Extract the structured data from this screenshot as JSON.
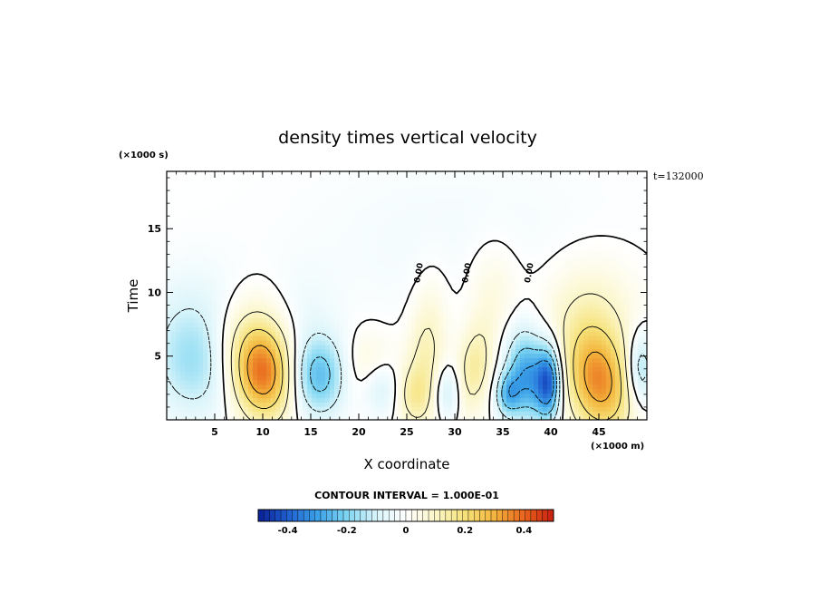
{
  "chart_data": {
    "type": "heatmap",
    "title": "density times vertical velocity",
    "xlabel": "X coordinate",
    "ylabel": "Time",
    "x_unit_label": "(×1000 m)",
    "y_unit_label": "(×1000 s)",
    "time_stamp": "t=132000",
    "xlim": [
      0,
      50
    ],
    "ylim": [
      0,
      19.5
    ],
    "x_ticks": [
      5,
      10,
      15,
      20,
      25,
      30,
      35,
      40,
      45
    ],
    "y_ticks": [
      5,
      10,
      15
    ],
    "contour_interval_text": "CONTOUR INTERVAL = 1.000E-01",
    "zero_contour_label": "0.00",
    "colorbar": {
      "range": [
        -0.5,
        0.5
      ],
      "ticks": [
        {
          "value": -0.4,
          "label": "-0.4"
        },
        {
          "value": -0.2,
          "label": "-0.2"
        },
        {
          "value": 0,
          "label": "0"
        },
        {
          "value": 0.2,
          "label": "0.2"
        },
        {
          "value": 0.4,
          "label": "0.4"
        }
      ],
      "colors": [
        "#0a1e96",
        "#1f5fd0",
        "#3aa0e8",
        "#7fd6f2",
        "#d8f4fa",
        "#ffffff",
        "#fbf6c8",
        "#f6e27a",
        "#f3b43c",
        "#e8641c",
        "#c81e10"
      ]
    },
    "features": [
      {
        "x": 10,
        "y": 3.5,
        "value": 0.35,
        "sx": 2.2,
        "sy": 2.5,
        "angle": 0.25
      },
      {
        "x": 8.5,
        "y": 6.5,
        "value": 0.12,
        "sx": 3.0,
        "sy": 2.5,
        "angle": 0.2
      },
      {
        "x": 45,
        "y": 3.0,
        "value": 0.34,
        "sx": 2.3,
        "sy": 3.0,
        "angle": 0.35
      },
      {
        "x": 44,
        "y": 8.5,
        "value": 0.1,
        "sx": 3.5,
        "sy": 3.0,
        "angle": 0.0
      },
      {
        "x": 27.0,
        "y": 5.0,
        "value": 0.13,
        "sx": 1.4,
        "sy": 4.0,
        "angle": -0.1
      },
      {
        "x": 32,
        "y": 4.0,
        "value": 0.15,
        "sx": 1.3,
        "sy": 2.5,
        "angle": -0.2
      },
      {
        "x": 34,
        "y": 10.0,
        "value": 0.07,
        "sx": 2.0,
        "sy": 3.0,
        "angle": 0.0
      },
      {
        "x": 25.5,
        "y": 2.0,
        "value": 0.1,
        "sx": 1.3,
        "sy": 1.5,
        "angle": 0.0
      },
      {
        "x": 21,
        "y": 4.0,
        "value": 0.08,
        "sx": 2.0,
        "sy": 2.0,
        "angle": 0.0
      },
      {
        "x": 37.5,
        "y": 3.5,
        "value": -0.3,
        "sx": 1.5,
        "sy": 2.5,
        "angle": 0.1
      },
      {
        "x": 39.8,
        "y": 3.0,
        "value": -0.35,
        "sx": 0.9,
        "sy": 2.0,
        "angle": 0.0
      },
      {
        "x": 15.8,
        "y": 3.5,
        "value": -0.25,
        "sx": 2.0,
        "sy": 2.2,
        "angle": 0.0
      },
      {
        "x": 3.0,
        "y": 4.5,
        "value": -0.16,
        "sx": 3.0,
        "sy": 3.0,
        "angle": 0.0
      },
      {
        "x": 3.0,
        "y": 8.5,
        "value": -0.05,
        "sx": 4.0,
        "sy": 3.0,
        "angle": 0.0
      },
      {
        "x": 22.3,
        "y": 2.5,
        "value": -0.12,
        "sx": 1.5,
        "sy": 1.5,
        "angle": 0.0
      },
      {
        "x": 49.3,
        "y": 4.0,
        "value": -0.18,
        "sx": 1.0,
        "sy": 2.0,
        "angle": 0.0
      },
      {
        "x": 29.3,
        "y": 2.2,
        "value": -0.12,
        "sx": 1.0,
        "sy": 1.5,
        "angle": 0.0
      },
      {
        "x": 35.5,
        "y": 2.0,
        "value": -0.2,
        "sx": 0.9,
        "sy": 1.2,
        "angle": 0.0
      },
      {
        "x": 14,
        "y": 8.5,
        "value": -0.04,
        "sx": 2.5,
        "sy": 2.5,
        "angle": 0.0
      },
      {
        "x": 30,
        "y": 14.0,
        "value": -0.03,
        "sx": 12.0,
        "sy": 5.0,
        "angle": 0.0
      }
    ]
  }
}
